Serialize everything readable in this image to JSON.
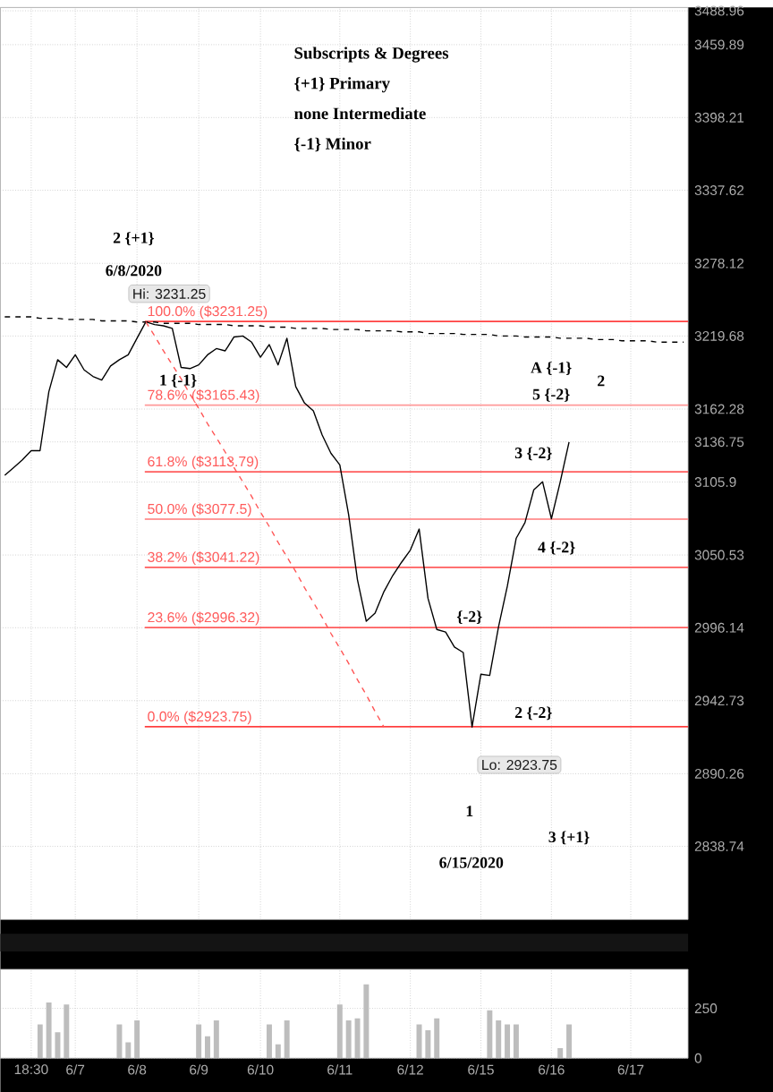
{
  "chart_data": [
    {
      "type": "line",
      "categories": [
        null,
        null,
        null,
        null,
        null,
        null,
        null,
        null,
        null,
        null,
        null,
        null,
        null,
        null,
        null,
        null,
        null,
        null,
        null,
        null,
        null,
        null,
        null,
        null,
        null,
        null,
        null,
        null,
        null,
        null,
        null,
        null,
        null,
        null,
        null,
        null,
        null,
        null,
        null,
        null,
        null,
        null,
        null,
        null,
        null,
        null,
        null,
        null,
        null,
        null,
        null,
        null,
        null,
        null,
        null,
        null,
        null,
        null,
        null,
        null,
        null,
        null,
        null,
        null,
        null,
        null,
        null,
        null,
        null,
        null,
        null,
        null,
        null,
        null,
        null,
        null,
        null,
        null
      ],
      "series": [
        {
          "color": "#000000",
          "values": [
            3111,
            3117,
            3123,
            3130,
            3130,
            3176,
            3201,
            3195,
            3205,
            3193,
            3188,
            3185,
            3196,
            3201,
            3205,
            3218,
            3231.25,
            3229,
            3228,
            3226,
            3195,
            3194,
            3197,
            3205,
            3210,
            3208,
            3219,
            3220,
            3215,
            3203,
            3213,
            3197,
            3218,
            3180,
            3167,
            3161,
            3142,
            3128,
            3119,
            3081,
            3032,
            3001,
            3007,
            3023,
            3035,
            3045,
            3054,
            3070,
            3018,
            2995,
            2993,
            2982,
            2978,
            2923.75,
            2962,
            2961,
            2997,
            3027,
            3063,
            3075,
            3100,
            3106,
            3078,
            3106,
            3136.75,
            null,
            null,
            null,
            null,
            null,
            null,
            null,
            null,
            null,
            null,
            null,
            null,
            null
          ]
        },
        {
          "type": "line",
          "color": "#000000",
          "line_style": "dashed",
          "values": [
            3235,
            3235,
            3235,
            3235,
            3234,
            3234,
            3234,
            3233,
            3233,
            3233,
            3233,
            3232,
            3232,
            3232,
            3232,
            3231,
            3231,
            3231,
            3230,
            3230,
            3230,
            3230,
            3229,
            3229,
            3229,
            3229,
            3228,
            3228,
            3228,
            3228,
            3227,
            3227,
            3227,
            3226,
            3226,
            3226,
            3226,
            3225,
            3225,
            3225,
            3225,
            3224,
            3224,
            3224,
            3224,
            3223,
            3223,
            3223,
            3222,
            3222,
            3222,
            3222,
            3221,
            3221,
            3221,
            3221,
            3220,
            3220,
            3220,
            3219,
            3219,
            3219,
            3219,
            3218,
            3218,
            3218,
            3218,
            3217,
            3217,
            3217,
            3216,
            3216,
            3216,
            3216,
            3215,
            3215,
            3215,
            3215
          ]
        },
        {
          "type": "line",
          "color": "#ff5555",
          "line_style": "dashed",
          "values": [
            null,
            null,
            null,
            null,
            null,
            null,
            null,
            null,
            null,
            null,
            null,
            null,
            null,
            null,
            null,
            null,
            3231.25,
            3220,
            3208,
            3197,
            3186,
            3174,
            3163,
            3151,
            3140,
            3129,
            3117,
            3106,
            3095,
            3083,
            3072,
            3060,
            3049,
            3038,
            3026,
            3015,
            3004,
            2992,
            2981,
            2970,
            2958,
            2947,
            2935,
            2923.75,
            null,
            null,
            null,
            null,
            null,
            null,
            null,
            null,
            null,
            null,
            null,
            null,
            null,
            null,
            null,
            null,
            null,
            null,
            null,
            null,
            null,
            null,
            null,
            null,
            null,
            null,
            null,
            null,
            null,
            null,
            null,
            null,
            null,
            null
          ]
        }
      ],
      "ylim": [
        2788,
        3492
      ],
      "yticks": [
        2838.74,
        2890.26,
        2942.73,
        2996.14,
        3050.53,
        3105.9,
        3136.75,
        3162.28,
        3219.68,
        3278.12,
        3337.62,
        3398.21,
        3459.89,
        3488.96
      ],
      "log": "y",
      "grid": true,
      "ref_lines": [
        {
          "axis": "y",
          "value": 3231.25,
          "label": "100.0% ($3231.25)",
          "color": "#ff4040"
        },
        {
          "axis": "y",
          "value": 3165.43,
          "label": "78.6% ($3165.43)",
          "color": "#ff9a9a"
        },
        {
          "axis": "y",
          "value": 3113.79,
          "label": "61.8% ($3113.79)",
          "color": "#ff5c5c"
        },
        {
          "axis": "y",
          "value": 3077.5,
          "label": "50.0% ($3077.5)",
          "color": "#ff9a9a"
        },
        {
          "axis": "y",
          "value": 3041.22,
          "label": "38.2% ($3041.22)",
          "color": "#ff5c5c"
        },
        {
          "axis": "y",
          "value": 2996.32,
          "label": "23.6% ($2996.32)",
          "color": "#ff5c5c"
        },
        {
          "axis": "y",
          "value": 2923.75,
          "label": "0.0% ($2923.75)",
          "color": "#ff4040"
        }
      ],
      "annotations": [
        "Hi: 3231.25",
        "Lo: 2923.75",
        "Subscripts & Degrees",
        "{+1} Primary",
        "none Intermediate",
        "{-1} Minor",
        "2 {+1}",
        "6/8/2020",
        "1 {-1}",
        "A {-1}",
        "5 {-2}",
        "2",
        "3 {-2}",
        "4 {-2}",
        "{-2}",
        "2 {-2}",
        "1",
        "6/15/2020",
        "3 {+1}"
      ]
    },
    {
      "type": "bar",
      "categories": [
        null,
        null,
        null,
        "18:30",
        null,
        null,
        null,
        null,
        "6/7",
        null,
        null,
        null,
        null,
        null,
        null,
        "6/8",
        null,
        null,
        null,
        null,
        null,
        null,
        "6/9",
        null,
        null,
        null,
        null,
        null,
        null,
        "6/10",
        null,
        null,
        null,
        null,
        null,
        null,
        null,
        null,
        "6/11",
        null,
        null,
        null,
        null,
        null,
        null,
        null,
        "6/12",
        null,
        null,
        null,
        null,
        null,
        null,
        null,
        "6/15",
        null,
        null,
        null,
        null,
        null,
        null,
        null,
        "6/16",
        null,
        null,
        null,
        null,
        null,
        null,
        null,
        null,
        "6/17",
        null,
        null,
        null,
        null,
        null,
        null
      ],
      "values": [
        null,
        null,
        null,
        null,
        170,
        280,
        130,
        270,
        null,
        null,
        null,
        null,
        null,
        170,
        80,
        190,
        null,
        null,
        null,
        null,
        null,
        null,
        170,
        110,
        190,
        null,
        null,
        null,
        null,
        null,
        170,
        70,
        190,
        null,
        null,
        null,
        null,
        null,
        270,
        190,
        200,
        370,
        null,
        null,
        null,
        null,
        null,
        170,
        140,
        200,
        null,
        null,
        null,
        null,
        null,
        240,
        190,
        170,
        170,
        null,
        null,
        null,
        null,
        50,
        170,
        null,
        null,
        null,
        null,
        null,
        null,
        null,
        null,
        null,
        null,
        null,
        null,
        null
      ],
      "color": "#bdbdbd",
      "ylim": [
        0,
        446
      ],
      "yticks": [
        0,
        250
      ],
      "grid": true
    }
  ]
}
